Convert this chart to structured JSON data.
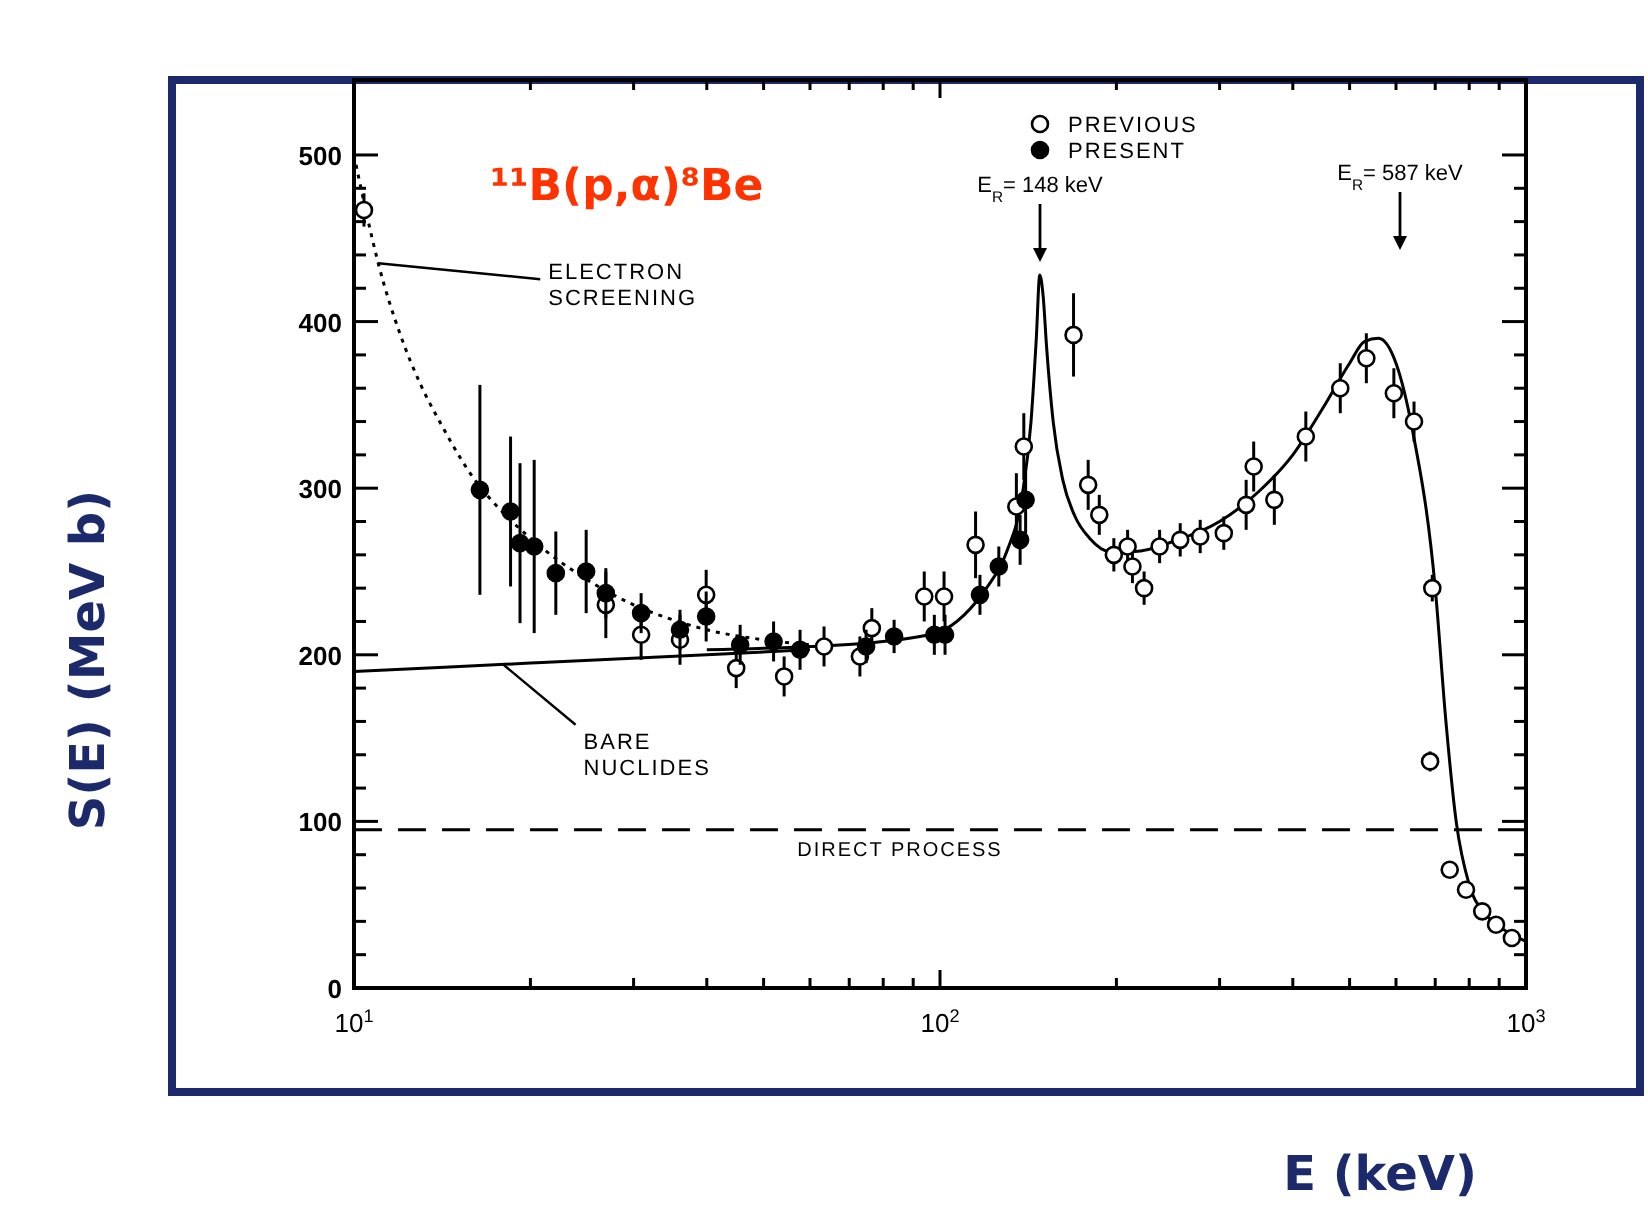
{
  "chart_data": {
    "type": "scatter",
    "title": "¹¹B(p,α)⁸Be",
    "xlabel": "E (keV)",
    "ylabel": "S(E) (MeV b)",
    "log": "x",
    "xlim": [
      10,
      1000
    ],
    "ylim": [
      0,
      545
    ],
    "xticks": [
      {
        "value": 10,
        "label": "10$^{1}$"
      },
      {
        "value": 20,
        "label": null
      },
      {
        "value": 30,
        "label": null
      },
      {
        "value": 40,
        "label": null
      },
      {
        "value": 50,
        "label": null
      },
      {
        "value": 60,
        "label": null
      },
      {
        "value": 70,
        "label": null
      },
      {
        "value": 80,
        "label": null
      },
      {
        "value": 90,
        "label": null
      },
      {
        "value": 100,
        "label": "10$^{2}$"
      },
      {
        "value": 200,
        "label": null
      },
      {
        "value": 300,
        "label": null
      },
      {
        "value": 400,
        "label": null
      },
      {
        "value": 500,
        "label": null
      },
      {
        "value": 600,
        "label": null
      },
      {
        "value": 700,
        "label": null
      },
      {
        "value": 800,
        "label": null
      },
      {
        "value": 900,
        "label": null
      },
      {
        "value": 1000,
        "label": "10$^{3}$"
      }
    ],
    "yticks": [
      0,
      {
        "value": 20,
        "label": null
      },
      {
        "value": 40,
        "label": null
      },
      {
        "value": 60,
        "label": null
      },
      {
        "value": 80,
        "label": null
      },
      100,
      {
        "value": 120,
        "label": null
      },
      {
        "value": 140,
        "label": null
      },
      {
        "value": 160,
        "label": null
      },
      {
        "value": 180,
        "label": null
      },
      200,
      {
        "value": 220,
        "label": null
      },
      {
        "value": 240,
        "label": null
      },
      {
        "value": 260,
        "label": null
      },
      {
        "value": 280,
        "label": null
      },
      300,
      {
        "value": 320,
        "label": null
      },
      {
        "value": 340,
        "label": null
      },
      {
        "value": 360,
        "label": null
      },
      {
        "value": 380,
        "label": null
      },
      400,
      {
        "value": 420,
        "label": null
      },
      {
        "value": 440,
        "label": null
      },
      {
        "value": 460,
        "label": null
      },
      {
        "value": 480,
        "label": null
      },
      500
    ],
    "grid": false,
    "legend": "top",
    "marker": "circle",
    "series": [
      {
        "type": "line",
        "color": "#000000",
        "line_style": "solid",
        "marker": "none",
        "x": [
          40,
          60,
          80,
          100,
          110,
          120,
          130,
          138,
          143,
          146,
          148,
          150,
          152,
          156,
          162,
          170,
          180,
          195,
          215,
          250,
          300,
          350,
          400,
          450,
          500,
          530,
          560,
          600,
          640,
          700,
          730,
          760,
          800,
          850,
          900,
          1000
        ],
        "values": [
          203,
          205,
          208,
          214,
          224,
          240,
          262,
          295,
          340,
          390,
          428,
          415,
          385,
          340,
          305,
          283,
          270,
          262,
          262,
          268,
          280,
          298,
          320,
          348,
          375,
          388,
          390,
          375,
          335,
          240,
          160,
          100,
          62,
          45,
          37,
          28
        ]
      },
      {
        "type": "line",
        "color": "#000000",
        "line_style": "dotted",
        "marker": "none",
        "x": [
          10,
          10.5,
          11,
          12,
          13,
          14,
          16,
          18,
          20,
          25,
          30,
          35,
          40,
          50,
          60
        ],
        "values": [
          500,
          465,
          435,
          392,
          362,
          340,
          306,
          285,
          270,
          245,
          230,
          221,
          215,
          209,
          206
        ]
      },
      {
        "type": "line",
        "color": "#000000",
        "line_style": "solid",
        "marker": "none",
        "x": [
          10,
          20,
          40,
          60
        ],
        "values": [
          190,
          195,
          200,
          203
        ]
      },
      {
        "name": "PREVIOUS",
        "color": "#ffffff",
        "x": [
          10.4,
          26.9,
          30.9,
          36,
          39.9,
          44.9,
          54.2,
          63.4,
          73,
          76.5,
          94,
          101.6,
          115,
          135,
          139,
          169,
          179,
          187,
          198,
          209,
          213,
          223,
          237,
          257,
          278,
          305,
          333,
          343,
          372,
          421,
          482,
          534,
          595,
          644,
          692,
          686,
          741,
          790,
          842,
          889,
          946
        ],
        "values": [
          467,
          230,
          212,
          209,
          236,
          192,
          187,
          205,
          199,
          216,
          235,
          235,
          266,
          289,
          325,
          392,
          302,
          284,
          260,
          265,
          253,
          240,
          265,
          269,
          271,
          273,
          290,
          313,
          293,
          331,
          360,
          378,
          357,
          340,
          240,
          136,
          71,
          59,
          46,
          38,
          30
        ],
        "errors": [
          10,
          20,
          15,
          15,
          15,
          12,
          12,
          12,
          12,
          12,
          15,
          15,
          20,
          20,
          20,
          25,
          15,
          12,
          10,
          10,
          10,
          10,
          10,
          10,
          10,
          10,
          15,
          15,
          15,
          15,
          15,
          15,
          15,
          12,
          8,
          6,
          5,
          4,
          4,
          3,
          3
        ]
      },
      {
        "name": "PRESENT",
        "color": "#000000",
        "x": [
          16.4,
          18.5,
          19.2,
          20.3,
          22.1,
          24.9,
          26.9,
          30.9,
          36,
          39.9,
          45.6,
          52,
          57.7,
          74.8,
          83.5,
          97.8,
          102,
          117,
          126,
          137,
          140
        ],
        "values": [
          299,
          286,
          267,
          265,
          249,
          250,
          237,
          225,
          215,
          223,
          206,
          208,
          203,
          205,
          211,
          212,
          212,
          236,
          253,
          269,
          293
        ],
        "errors": [
          63,
          45,
          48,
          52,
          25,
          25,
          15,
          12,
          12,
          15,
          12,
          12,
          12,
          10,
          10,
          12,
          12,
          12,
          12,
          15,
          20
        ]
      }
    ],
    "ref_lines": [
      {
        "axis": "y",
        "value": 95,
        "label": "DIRECT PROCESS",
        "line_style": "dashed",
        "color": "#000000"
      }
    ],
    "annotations": [
      {
        "text": "ELECTRON SCREENING",
        "x": 11,
        "y": 435
      },
      {
        "text": "BARE NUCLIDES",
        "x": 18,
        "y": 194
      },
      "E$_{R}$= 148 keV",
      "E$_{R}$= 587 keV"
    ]
  }
}
